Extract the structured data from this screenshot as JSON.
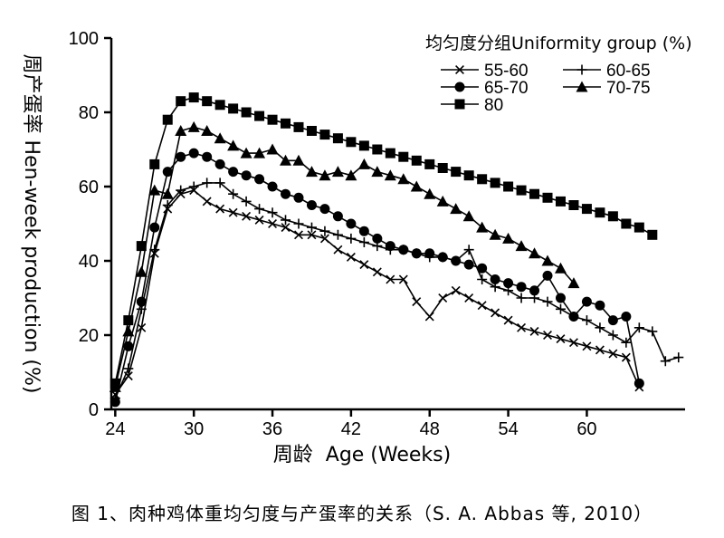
{
  "chart_data": {
    "type": "line",
    "xlabel": "周龄  Age (Weeks)",
    "ylabel": "周产蛋率  Hen-week production (%)",
    "xticks": [
      24,
      30,
      36,
      42,
      48,
      54,
      60
    ],
    "yticks": [
      0,
      20,
      40,
      60,
      80,
      100
    ],
    "xlim": [
      23.7,
      67.5
    ],
    "ylim": [
      0,
      100
    ],
    "legend_title": "均匀度分组Uniformity group (%)",
    "legend_position": "top-right",
    "series": [
      {
        "name": "55-60",
        "marker": "x",
        "x": [
          24,
          25,
          26,
          27,
          28,
          29,
          30,
          31,
          32,
          33,
          34,
          35,
          36,
          37,
          38,
          39,
          40,
          41,
          42,
          43,
          44,
          45,
          46,
          47,
          48,
          49,
          50,
          51,
          52,
          53,
          54,
          55,
          56,
          57,
          58,
          59,
          60,
          61,
          62,
          63,
          64
        ],
        "y": [
          4,
          9,
          22,
          42,
          54,
          58,
          59,
          56,
          54,
          53,
          52,
          51,
          50,
          49,
          47,
          47,
          46,
          43,
          41,
          39,
          37,
          35,
          35,
          29,
          25,
          30,
          32,
          30,
          28,
          26,
          24,
          22,
          21,
          20,
          19,
          18,
          17,
          16,
          15,
          14,
          6
        ]
      },
      {
        "name": "60-65",
        "marker": "plus",
        "x": [
          24,
          25,
          26,
          27,
          28,
          29,
          30,
          31,
          32,
          33,
          34,
          35,
          36,
          37,
          38,
          39,
          40,
          41,
          42,
          43,
          44,
          45,
          46,
          47,
          48,
          49,
          50,
          51,
          52,
          53,
          54,
          55,
          56,
          57,
          58,
          59,
          60,
          61,
          62,
          63,
          64,
          65,
          66,
          67
        ],
        "y": [
          3,
          11,
          27,
          43,
          55,
          59,
          60,
          61,
          61,
          58,
          56,
          54,
          53,
          51,
          50,
          49,
          48,
          47,
          46,
          45,
          44,
          43,
          43,
          42,
          41,
          41,
          40,
          43,
          35,
          33,
          32,
          30,
          30,
          29,
          27,
          25,
          24,
          22,
          20,
          18,
          22,
          21,
          13,
          14
        ]
      },
      {
        "name": "65-70",
        "marker": "circle",
        "x": [
          24,
          25,
          26,
          27,
          28,
          29,
          30,
          31,
          32,
          33,
          34,
          35,
          36,
          37,
          38,
          39,
          40,
          41,
          42,
          43,
          44,
          45,
          46,
          47,
          48,
          49,
          50,
          51,
          52,
          53,
          54,
          55,
          56,
          57,
          58,
          59,
          60,
          61,
          62,
          63,
          64
        ],
        "y": [
          2,
          17,
          29,
          49,
          64,
          68,
          69,
          68,
          66,
          64,
          63,
          62,
          60,
          58,
          57,
          55,
          54,
          52,
          50,
          48,
          46,
          44,
          43,
          42,
          42,
          41,
          40,
          39,
          38,
          35,
          34,
          33,
          32,
          36,
          30,
          25,
          29,
          28,
          24,
          25,
          7
        ]
      },
      {
        "name": "70-75",
        "marker": "triangle",
        "x": [
          24,
          25,
          26,
          27,
          28,
          29,
          30,
          31,
          32,
          33,
          34,
          35,
          36,
          37,
          38,
          39,
          40,
          41,
          42,
          43,
          44,
          45,
          46,
          47,
          48,
          49,
          50,
          51,
          52,
          53,
          54,
          55,
          56,
          57,
          58,
          59
        ],
        "y": [
          6,
          21,
          37,
          59,
          58,
          75,
          76,
          75,
          73,
          71,
          69,
          69,
          70,
          67,
          67,
          64,
          63,
          64,
          63,
          66,
          64,
          63,
          62,
          60,
          58,
          56,
          54,
          52,
          49,
          47,
          46,
          44,
          42,
          40,
          38,
          34
        ]
      },
      {
        "name": "80",
        "marker": "square",
        "x": [
          24,
          25,
          26,
          27,
          28,
          29,
          30,
          31,
          32,
          33,
          34,
          35,
          36,
          37,
          38,
          39,
          40,
          41,
          42,
          43,
          44,
          45,
          46,
          47,
          48,
          49,
          50,
          51,
          52,
          53,
          54,
          55,
          56,
          57,
          58,
          59,
          60,
          61,
          62,
          63,
          64,
          65
        ],
        "y": [
          7,
          24,
          44,
          66,
          78,
          83,
          84,
          83,
          82,
          81,
          80,
          79,
          78,
          77,
          76,
          75,
          74,
          73,
          72,
          71,
          70,
          69,
          68,
          67,
          66,
          65,
          64,
          63,
          62,
          61,
          60,
          59,
          58,
          57,
          56,
          55,
          54,
          53,
          52,
          50,
          49,
          47
        ]
      }
    ]
  },
  "caption": "图 1、肉种鸡体重均匀度与产蛋率的关系（S. A. Abbas 等, 2010）"
}
